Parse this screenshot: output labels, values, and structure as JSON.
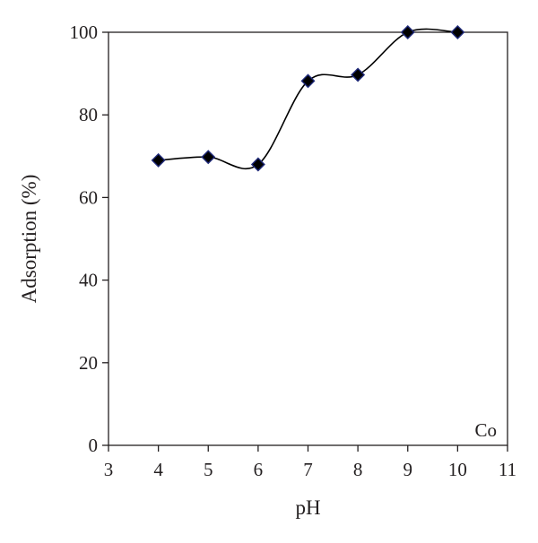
{
  "chart_data": {
    "type": "scatter",
    "title": "",
    "xlabel": "pH",
    "ylabel": "Adsorption (%)",
    "xlim": [
      3,
      11
    ],
    "ylim": [
      0,
      100
    ],
    "xticks": [
      3,
      4,
      5,
      6,
      7,
      8,
      9,
      10,
      11
    ],
    "yticks": [
      0,
      20,
      40,
      60,
      80,
      100
    ],
    "grid": false,
    "legend": "none",
    "annotation": "Co",
    "series": [
      {
        "x": [
          4,
          5,
          6,
          7,
          8,
          9,
          10
        ],
        "y": [
          69,
          69.8,
          68,
          88.2,
          89.7,
          100,
          100
        ],
        "marker": "diamond",
        "marker_fill": "#000000",
        "marker_edge": "#1f2a7a",
        "line": "smooth",
        "line_color": "#000000"
      }
    ]
  }
}
